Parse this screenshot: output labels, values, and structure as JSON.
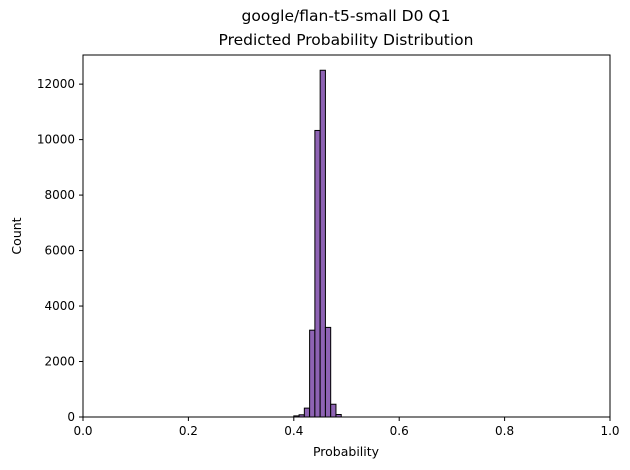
{
  "chart_data": {
    "type": "histogram",
    "title_line1": "google/flan-t5-small D0 Q1",
    "title_line2": "Predicted Probability Distribution",
    "xlabel": "Probability",
    "ylabel": "Count",
    "xlim": [
      0.0,
      1.0
    ],
    "ylim": [
      0,
      13050
    ],
    "xticks": [
      0.0,
      0.2,
      0.4,
      0.6,
      0.8,
      1.0
    ],
    "xtick_labels": [
      "0.0",
      "0.2",
      "0.4",
      "0.6",
      "0.8",
      "1.0"
    ],
    "yticks": [
      0,
      2000,
      4000,
      6000,
      8000,
      10000,
      12000
    ],
    "ytick_labels": [
      "0",
      "2000",
      "4000",
      "6000",
      "8000",
      "10000",
      "12000"
    ],
    "bin_width": 0.01,
    "bins": [
      {
        "x0": 0.4,
        "x1": 0.41,
        "count": 40
      },
      {
        "x0": 0.41,
        "x1": 0.42,
        "count": 80
      },
      {
        "x0": 0.42,
        "x1": 0.43,
        "count": 320
      },
      {
        "x0": 0.43,
        "x1": 0.44,
        "count": 3130
      },
      {
        "x0": 0.44,
        "x1": 0.45,
        "count": 10330
      },
      {
        "x0": 0.45,
        "x1": 0.46,
        "count": 12500
      },
      {
        "x0": 0.46,
        "x1": 0.47,
        "count": 3230
      },
      {
        "x0": 0.47,
        "x1": 0.48,
        "count": 460
      },
      {
        "x0": 0.48,
        "x1": 0.49,
        "count": 90
      }
    ],
    "bar_color": "#8e63b4",
    "edge_color": "#000000",
    "grid": false
  }
}
